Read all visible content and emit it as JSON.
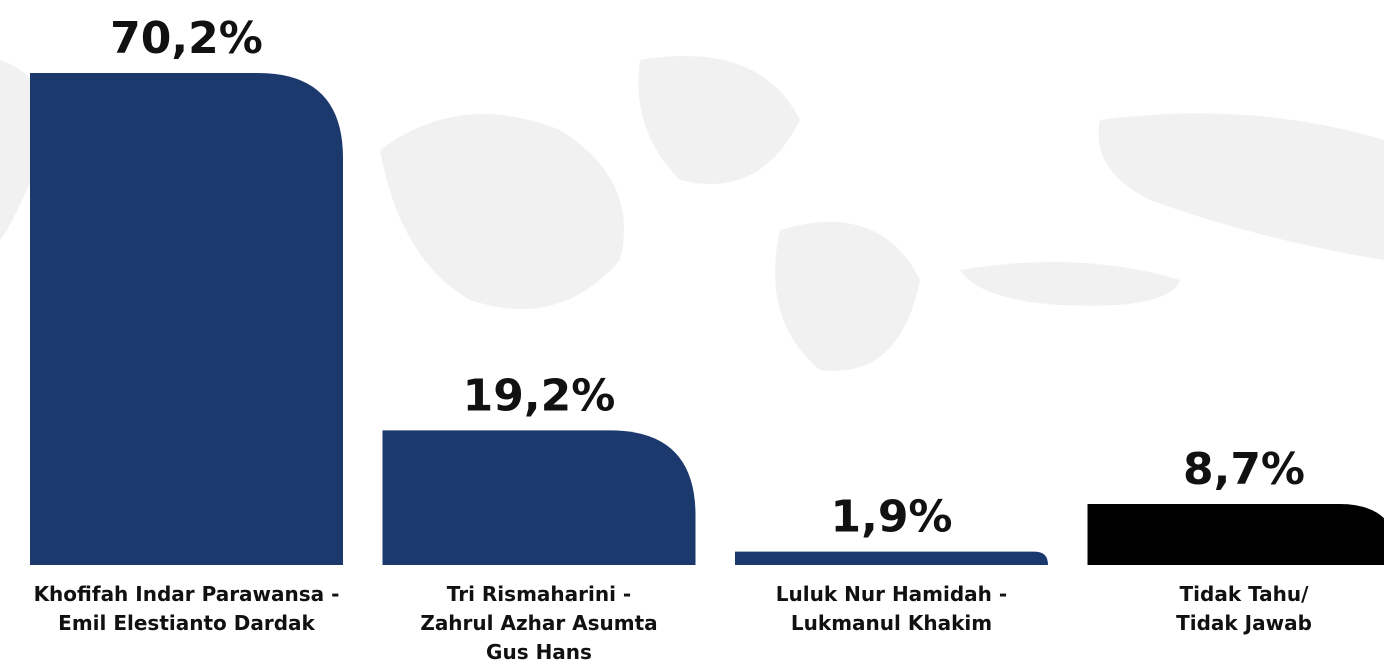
{
  "chart_data": {
    "type": "bar",
    "categories": [
      "Khofifah Indar Parawansa -\nEmil Elestianto Dardak",
      "Tri Rismaharini -\nZahrul Azhar Asumta\nGus Hans",
      "Luluk Nur Hamidah -\nLukmanul Khakim",
      "Tidak Tahu/\nTidak Jawab"
    ],
    "values": [
      70.2,
      19.2,
      1.9,
      8.7
    ],
    "value_labels": [
      "70,2%",
      "19,2%",
      "1,9%",
      "8,7%"
    ],
    "colors": [
      "#1b396d",
      "#1b396d",
      "#1b396d",
      "#000000"
    ]
  }
}
